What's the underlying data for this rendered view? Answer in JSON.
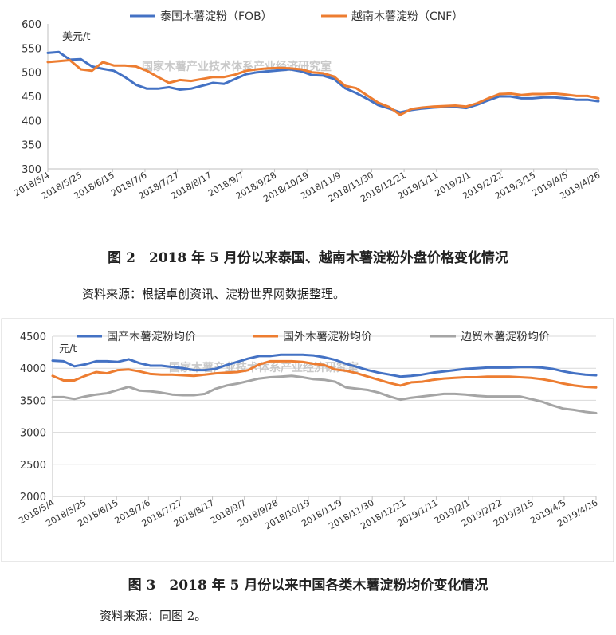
{
  "chart_data": [
    {
      "type": "line",
      "title": "",
      "xlabel": "",
      "ylabel": "",
      "unit": "美元/t",
      "watermark": "国家木薯产业技术体系产业经济研究室",
      "ylim": [
        300,
        600
      ],
      "yticks": [
        300,
        350,
        400,
        450,
        500,
        550,
        600
      ],
      "grid": false,
      "legend_position": "top",
      "x_tick_labels": [
        "2018/5/4",
        "2018/5/25",
        "2018/6/15",
        "2018/7/6",
        "2018/7/27",
        "2018/8/17",
        "2018/9/7",
        "2018/9/28",
        "2018/10/19",
        "2018/11/9",
        "2018/11/30",
        "2018/12/21",
        "2019/1/11",
        "2019/2/1",
        "2019/2/22",
        "2019/3/15",
        "2019/4/5",
        "2019/4/26"
      ],
      "series": [
        {
          "name": "泰国木薯淀粉（FOB）",
          "color": "#4472c4",
          "values": [
            540,
            542,
            526,
            527,
            512,
            507,
            503,
            490,
            474,
            466,
            466,
            469,
            464,
            466,
            472,
            478,
            476,
            486,
            496,
            500,
            502,
            504,
            506,
            502,
            494,
            493,
            486,
            467,
            457,
            445,
            432,
            425,
            417,
            422,
            425,
            427,
            428,
            428,
            426,
            433,
            442,
            450,
            450,
            446,
            446,
            448,
            448,
            446,
            443,
            443,
            440
          ]
        },
        {
          "name": "越南木薯淀粉（CNF）",
          "color": "#ed7d31",
          "values": [
            521,
            523,
            525,
            506,
            503,
            521,
            514,
            514,
            512,
            503,
            490,
            478,
            484,
            482,
            486,
            490,
            490,
            495,
            503,
            506,
            508,
            509,
            508,
            506,
            500,
            498,
            491,
            472,
            467,
            452,
            437,
            428,
            412,
            424,
            427,
            429,
            430,
            431,
            429,
            436,
            446,
            455,
            456,
            453,
            455,
            455,
            456,
            454,
            451,
            451,
            446
          ]
        }
      ]
    },
    {
      "type": "line",
      "title": "",
      "xlabel": "",
      "ylabel": "",
      "unit": "元/t",
      "watermark": "国家木薯产业技术体系产业经济研究室",
      "ylim": [
        2000,
        4500
      ],
      "yticks": [
        2000,
        2500,
        3000,
        3500,
        4000,
        4500
      ],
      "grid": true,
      "legend_position": "top",
      "x_tick_labels": [
        "2018/5/4",
        "2018/5/25",
        "2018/6/15",
        "2018/7/6",
        "2018/7/27",
        "2018/8/17",
        "2018/9/7",
        "2018/9/28",
        "2018/10/19",
        "2018/11/9",
        "2018/11/30",
        "2018/12/21",
        "2019/1/11",
        "2019/2/1",
        "2019/2/22",
        "2019/3/15",
        "2019/4/5",
        "2019/4/26"
      ],
      "series": [
        {
          "name": "国产木薯淀粉均价",
          "color": "#4472c4",
          "values": [
            4120,
            4110,
            4030,
            4060,
            4110,
            4110,
            4100,
            4140,
            4080,
            4040,
            4040,
            4020,
            4000,
            3970,
            3970,
            3990,
            4050,
            4100,
            4150,
            4190,
            4190,
            4210,
            4210,
            4210,
            4200,
            4170,
            4130,
            4070,
            4020,
            3970,
            3930,
            3900,
            3870,
            3880,
            3900,
            3930,
            3950,
            3970,
            3990,
            4000,
            4010,
            4010,
            4010,
            4020,
            4020,
            4010,
            3990,
            3950,
            3920,
            3900,
            3890
          ]
        },
        {
          "name": "国外木薯淀粉均价",
          "color": "#ed7d31",
          "values": [
            3880,
            3810,
            3810,
            3880,
            3940,
            3920,
            3970,
            3980,
            3950,
            3910,
            3900,
            3900,
            3890,
            3880,
            3900,
            3920,
            3930,
            3940,
            3970,
            4060,
            4110,
            4110,
            4110,
            4100,
            4070,
            4050,
            3980,
            3960,
            3920,
            3870,
            3820,
            3770,
            3730,
            3780,
            3790,
            3820,
            3840,
            3850,
            3860,
            3860,
            3870,
            3870,
            3870,
            3860,
            3850,
            3830,
            3800,
            3760,
            3730,
            3710,
            3700
          ]
        },
        {
          "name": "边贸木薯淀粉均价",
          "color": "#a5a5a5",
          "values": [
            3550,
            3550,
            3520,
            3560,
            3590,
            3610,
            3660,
            3710,
            3650,
            3640,
            3620,
            3590,
            3580,
            3580,
            3600,
            3680,
            3730,
            3760,
            3800,
            3840,
            3860,
            3870,
            3880,
            3860,
            3830,
            3820,
            3790,
            3700,
            3680,
            3660,
            3620,
            3560,
            3510,
            3540,
            3560,
            3580,
            3600,
            3600,
            3590,
            3570,
            3560,
            3560,
            3560,
            3560,
            3520,
            3480,
            3420,
            3370,
            3350,
            3320,
            3300
          ]
        }
      ]
    }
  ],
  "captions": {
    "fig2_title": "图 2　2018 年 5 月份以来泰国、越南木薯淀粉外盘价格变化情况",
    "fig2_source": "资料来源：根据卓创资讯、淀粉世界网数据整理。",
    "fig3_title": "图 3　2018 年 5 月份以来中国各类木薯淀粉均价变化情况",
    "fig3_source": "资料来源：同图 2。"
  }
}
